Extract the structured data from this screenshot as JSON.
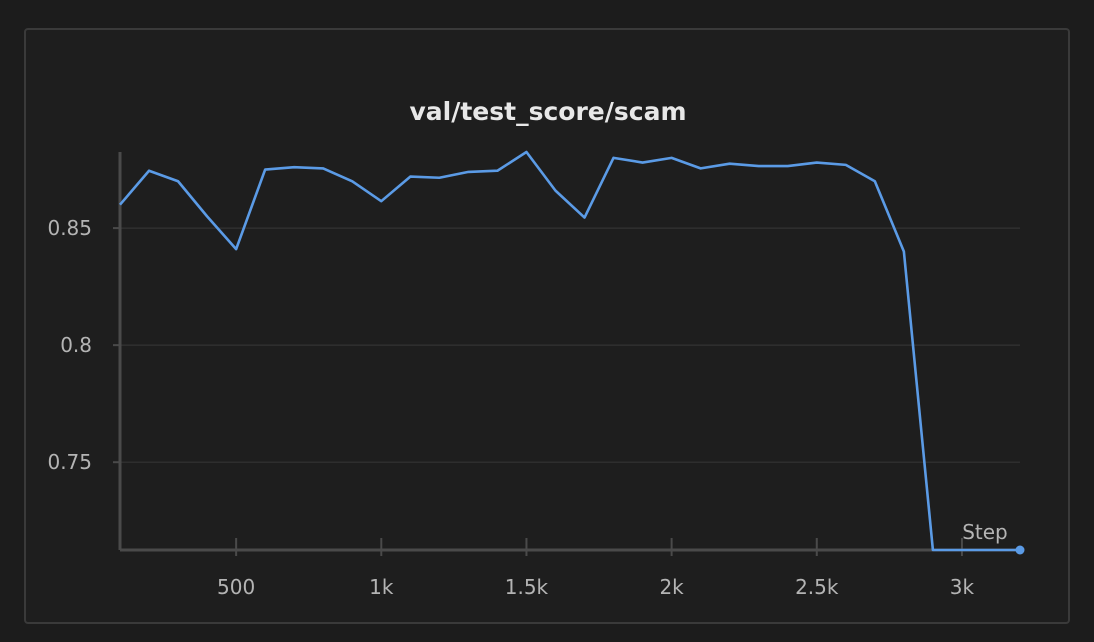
{
  "chart_data": {
    "type": "line",
    "title": "val/test_score/scam",
    "xlabel": "Step",
    "ylabel": "",
    "xlim": [
      100,
      3200
    ],
    "ylim": [
      0.7125,
      0.8825
    ],
    "x_ticks": [
      500,
      1000,
      1500,
      2000,
      2500,
      3000
    ],
    "x_tick_labels": [
      "500",
      "1k",
      "1.5k",
      "2k",
      "2.5k",
      "3k"
    ],
    "y_ticks": [
      0.75,
      0.8,
      0.85
    ],
    "y_tick_labels": [
      "0.75",
      "0.8",
      "0.85"
    ],
    "grid": true,
    "line_color": "#5b9be6",
    "series": [
      {
        "x": [
          100,
          200,
          300,
          400,
          500,
          600,
          700,
          800,
          900,
          1000,
          1100,
          1200,
          1300,
          1400,
          1500,
          1600,
          1700,
          1800,
          1900,
          2000,
          2100,
          2200,
          2300,
          2400,
          2500,
          2600,
          2700,
          2800,
          2900,
          3000,
          3100,
          3200
        ],
        "y": [
          0.86,
          0.8745,
          0.87,
          0.855,
          0.841,
          0.875,
          0.876,
          0.8755,
          0.87,
          0.8615,
          0.872,
          0.8715,
          0.874,
          0.8745,
          0.8825,
          0.866,
          0.8545,
          0.88,
          0.878,
          0.88,
          0.8755,
          0.8775,
          0.8765,
          0.8765,
          0.878,
          0.877,
          0.87,
          0.84,
          0.7125,
          0.7125,
          0.7125,
          0.7125
        ]
      }
    ]
  }
}
